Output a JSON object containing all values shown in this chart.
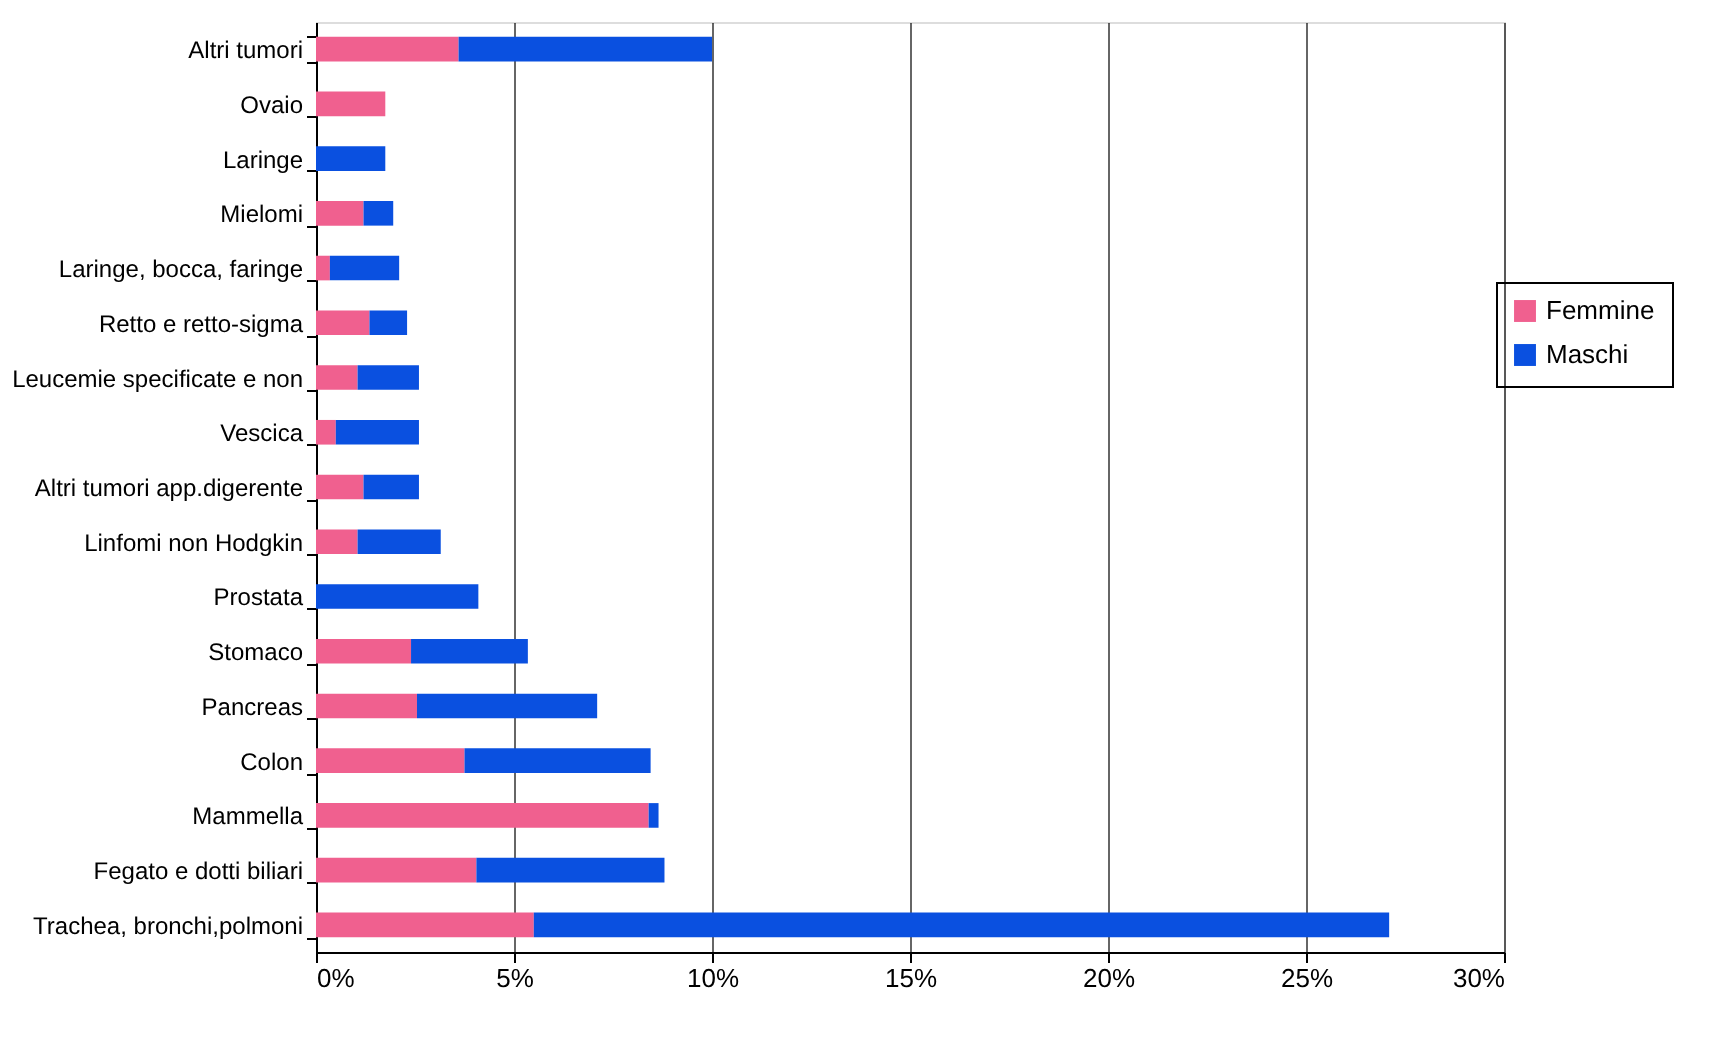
{
  "chart_data": {
    "type": "bar",
    "orientation": "horizontal",
    "stacked": true,
    "categories": [
      "Altri tumori",
      "Ovaio",
      "Laringe",
      "Mielomi",
      "Laringe, bocca, faringe",
      "Retto e retto-sigma",
      "Leucemie specificate e non",
      "Vescica",
      "Altri tumori app.digerente",
      "Linfomi non Hodgkin",
      "Prostata",
      "Stomaco",
      "Pancreas",
      "Colon",
      "Mammella",
      "Fegato e dotti biliari",
      "Trachea, bronchi,polmoni"
    ],
    "series": [
      {
        "name": "Femmine",
        "color": "#f0608f",
        "values": [
          3.6,
          1.75,
          0,
          1.2,
          0.35,
          1.35,
          1.05,
          0.5,
          1.2,
          1.05,
          0,
          2.4,
          2.55,
          3.75,
          8.4,
          4.05,
          5.5
        ]
      },
      {
        "name": "Maschi",
        "color": "#0a50e0",
        "values": [
          6.4,
          0,
          1.75,
          0.75,
          1.75,
          0.95,
          1.55,
          2.1,
          1.4,
          2.1,
          4.1,
          2.95,
          4.55,
          4.7,
          0.25,
          4.75,
          21.6
        ]
      }
    ],
    "xlim": [
      0,
      30
    ],
    "xticks": [
      {
        "value": 0,
        "label": "0%"
      },
      {
        "value": 5,
        "label": "5%"
      },
      {
        "value": 10,
        "label": "10%"
      },
      {
        "value": 15,
        "label": "15%"
      },
      {
        "value": 20,
        "label": "20%"
      },
      {
        "value": 25,
        "label": "25%"
      },
      {
        "value": 30,
        "label": "30%"
      }
    ],
    "grid": "x",
    "legend": "right"
  }
}
